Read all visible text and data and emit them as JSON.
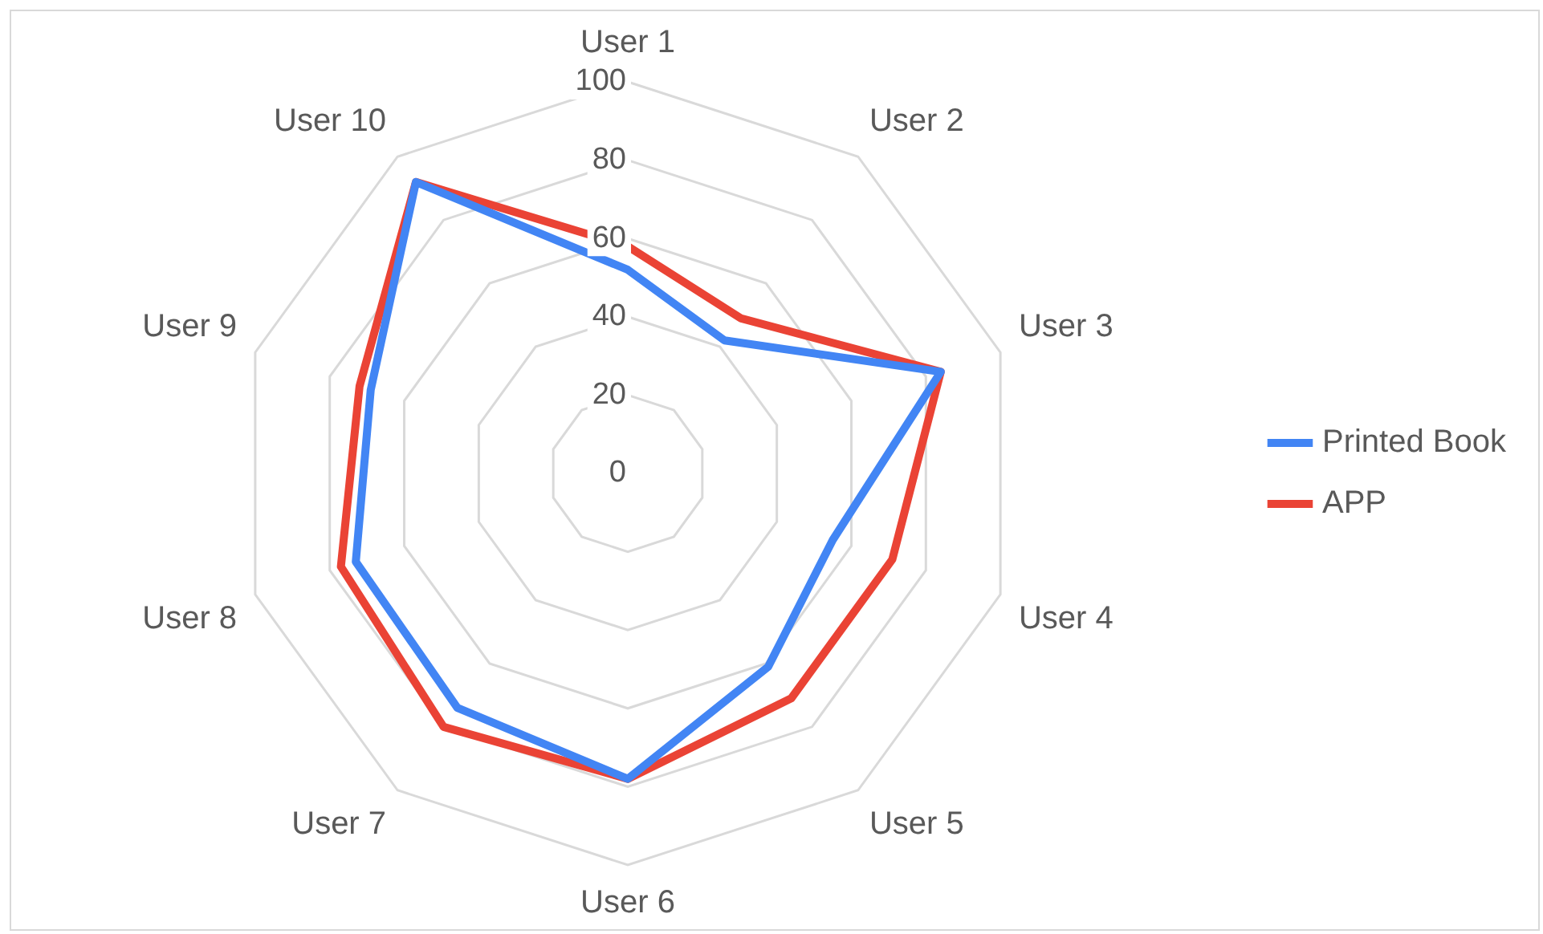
{
  "chart_data": {
    "type": "radar",
    "categories": [
      "User 1",
      "User 2",
      "User 3",
      "User 4",
      "User 5",
      "User 6",
      "User 7",
      "User 8",
      "User 9",
      "User 10"
    ],
    "series": [
      {
        "name": "Printed Book",
        "color": "#4285f4",
        "values": [
          52,
          42,
          84,
          55,
          61,
          78,
          74,
          73,
          69,
          92
        ]
      },
      {
        "name": "APP",
        "color": "#ea4335",
        "values": [
          58,
          49,
          84,
          71,
          71,
          78,
          80,
          77,
          72,
          92
        ]
      }
    ],
    "ylim": [
      0,
      100
    ],
    "yticks": [
      0,
      20,
      40,
      60,
      80,
      100
    ],
    "grid": true,
    "legend": "right",
    "marker": "none"
  }
}
